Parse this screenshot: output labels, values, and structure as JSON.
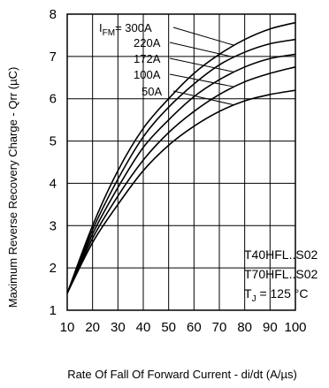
{
  "chart_data": {
    "type": "line",
    "xlabel": "Rate Of Fall Of Forward Current - di/dt (A/µs)",
    "ylabel": "Maximum Reverse Recovery Charge - Qrr (µC)",
    "xlim": [
      10,
      100
    ],
    "ylim": [
      1,
      8
    ],
    "xticks": [
      "10",
      "20",
      "30",
      "40",
      "50",
      "60",
      "70",
      "80",
      "90",
      "100"
    ],
    "yticks": [
      "1",
      "2",
      "3",
      "4",
      "5",
      "6",
      "7",
      "8"
    ],
    "grid": true,
    "x": [
      10,
      20,
      30,
      40,
      50,
      60,
      70,
      80,
      90,
      100
    ],
    "series": [
      {
        "name": "I FM = 300A",
        "values": [
          1.4,
          3.0,
          4.3,
          5.3,
          6.0,
          6.6,
          7.05,
          7.4,
          7.65,
          7.8
        ]
      },
      {
        "name": "220A",
        "values": [
          1.4,
          2.9,
          4.1,
          5.1,
          5.8,
          6.35,
          6.8,
          7.1,
          7.3,
          7.4
        ]
      },
      {
        "name": "172A",
        "values": [
          1.4,
          2.8,
          3.9,
          4.85,
          5.5,
          6.05,
          6.45,
          6.75,
          6.95,
          7.05
        ]
      },
      {
        "name": "100A",
        "values": [
          1.4,
          2.7,
          3.7,
          4.55,
          5.2,
          5.7,
          6.1,
          6.4,
          6.6,
          6.75
        ]
      },
      {
        "name": "50A",
        "values": [
          1.4,
          2.6,
          3.5,
          4.3,
          4.9,
          5.35,
          5.7,
          5.95,
          6.1,
          6.2
        ]
      }
    ],
    "label_prefix_main": "I",
    "label_prefix_sub": "FM",
    "label_first_value": "= 300A",
    "annotation": {
      "line1": "T40HFL..S02",
      "line2": "T70HFL..S02",
      "line3_main": "T",
      "line3_sub": "J",
      "line3_value": " = 125 °C"
    }
  }
}
